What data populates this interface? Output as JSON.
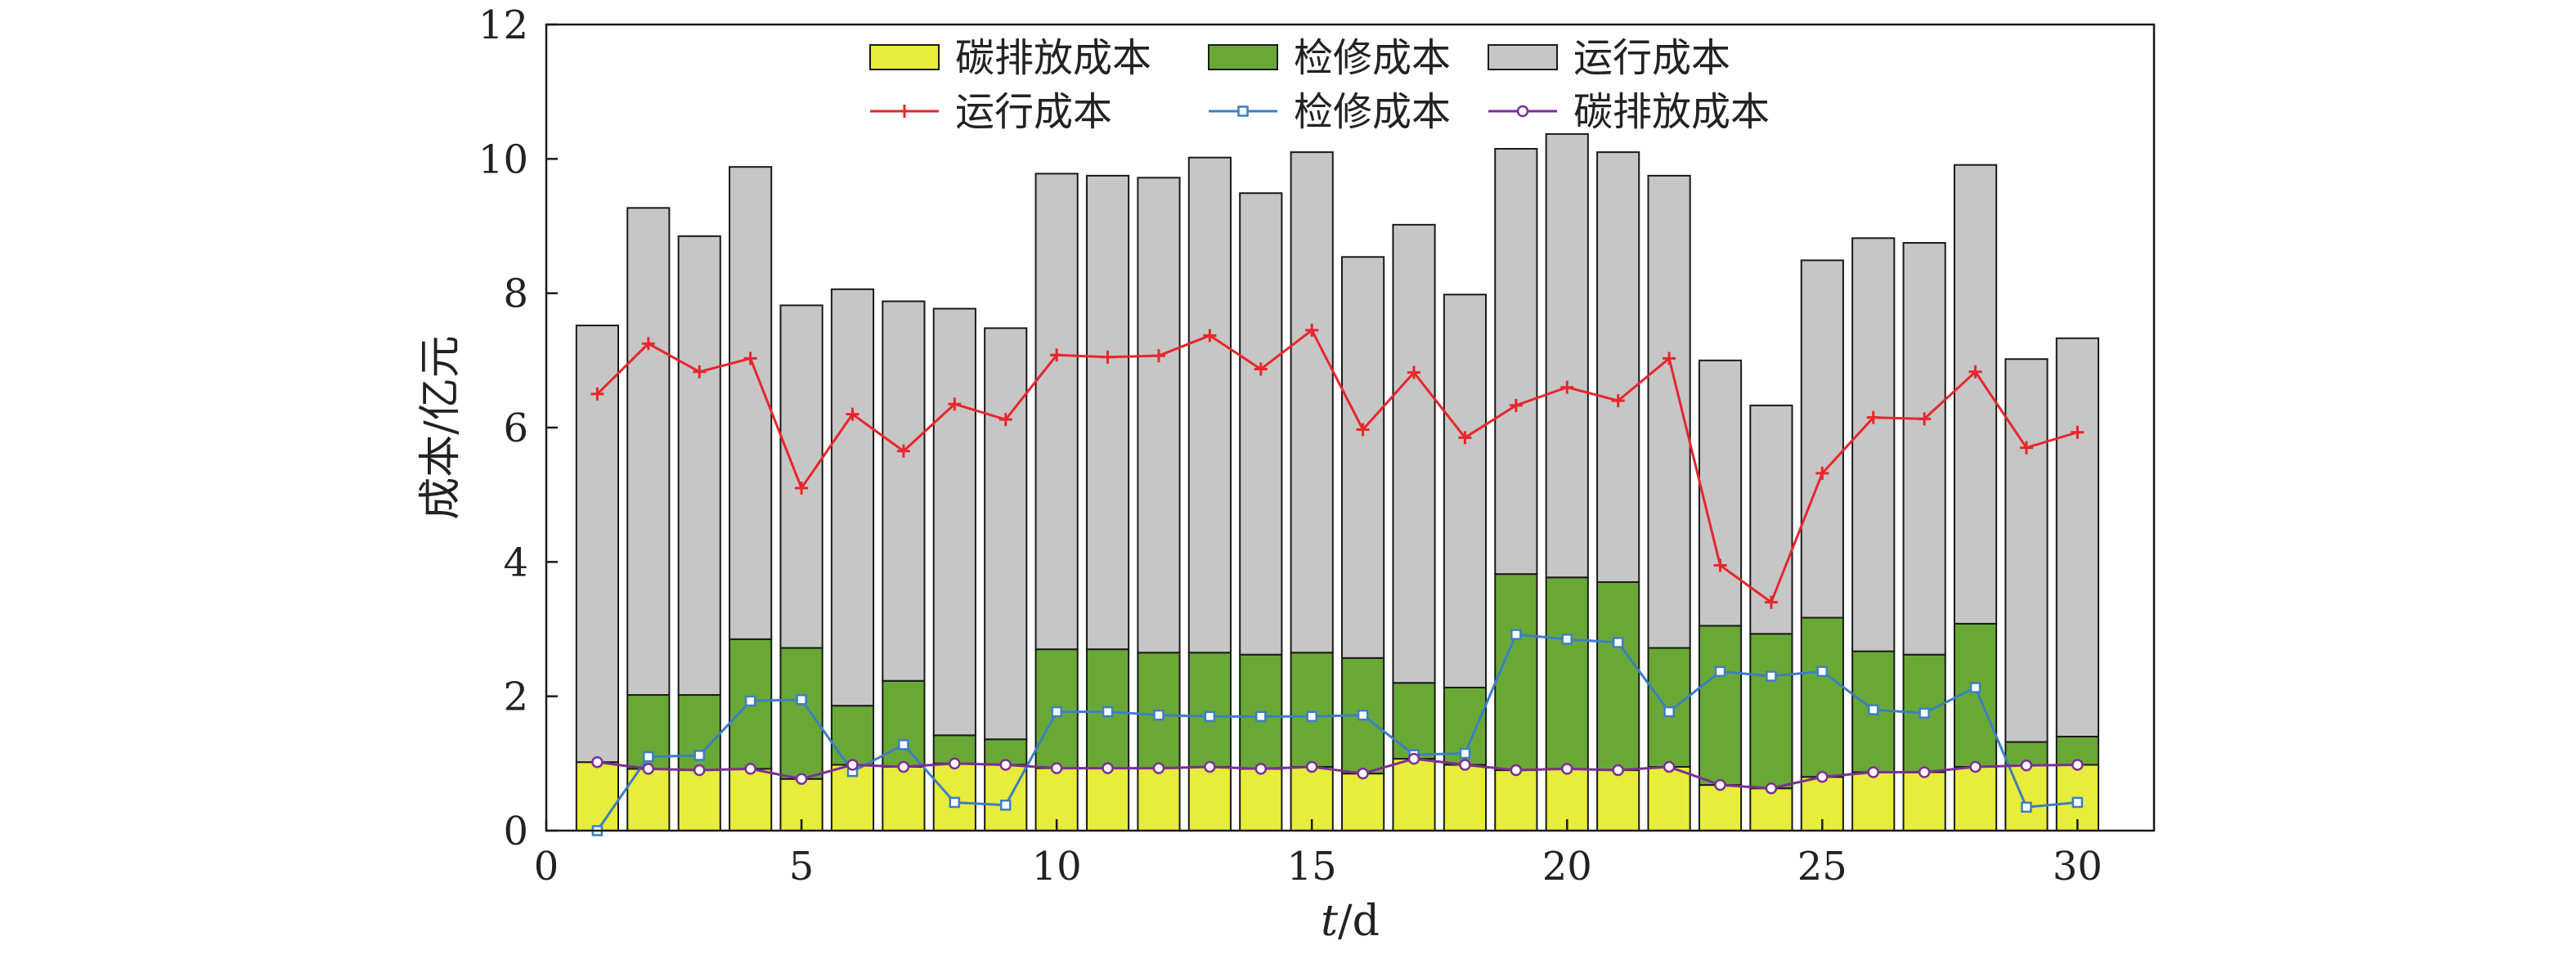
{
  "chart_data": {
    "type": "bar",
    "stacked": true,
    "title": "",
    "xlabel_italic": "t",
    "xlabel_unit": "/d",
    "ylabel": "成本/亿元",
    "xlim": [
      0,
      31.5
    ],
    "ylim": [
      0,
      12
    ],
    "x_ticks": [
      0,
      5,
      10,
      15,
      20,
      25,
      30
    ],
    "y_ticks": [
      0,
      2,
      4,
      6,
      8,
      10,
      12
    ],
    "grid": false,
    "legend_position": "top-center",
    "x": [
      1,
      2,
      3,
      4,
      5,
      6,
      7,
      8,
      9,
      10,
      11,
      12,
      13,
      14,
      15,
      16,
      17,
      18,
      19,
      20,
      21,
      22,
      23,
      24,
      25,
      26,
      27,
      28,
      29,
      30
    ],
    "bar_series": [
      {
        "name": "碳排放成本",
        "color": "#e8ec3a",
        "values": [
          1.02,
          0.92,
          0.9,
          0.92,
          0.77,
          0.98,
          0.95,
          1.0,
          0.98,
          0.93,
          0.93,
          0.93,
          0.95,
          0.92,
          0.95,
          0.85,
          1.07,
          0.98,
          0.9,
          0.92,
          0.9,
          0.95,
          0.68,
          0.63,
          0.8,
          0.87,
          0.87,
          0.95,
          0.97,
          0.98
        ]
      },
      {
        "name": "检修成本",
        "color": "#6aa835",
        "values": [
          0.0,
          1.1,
          1.12,
          1.93,
          1.95,
          0.88,
          1.28,
          0.42,
          0.38,
          1.77,
          1.77,
          1.72,
          1.7,
          1.7,
          1.7,
          1.72,
          1.13,
          1.15,
          2.92,
          2.85,
          2.8,
          1.77,
          2.37,
          2.3,
          2.37,
          1.8,
          1.75,
          2.13,
          0.35,
          0.42
        ]
      },
      {
        "name": "运行成本",
        "color": "#c6c6c6",
        "values": [
          6.5,
          7.25,
          6.83,
          7.03,
          5.1,
          6.2,
          5.65,
          6.35,
          6.12,
          7.08,
          7.05,
          7.07,
          7.37,
          6.87,
          7.45,
          5.97,
          6.82,
          5.85,
          6.33,
          6.6,
          6.4,
          7.03,
          3.95,
          3.4,
          5.32,
          6.15,
          6.13,
          6.83,
          5.7,
          5.93
        ]
      }
    ],
    "line_series": [
      {
        "name": "运行成本",
        "color": "#e8262b",
        "marker": "plus",
        "source_bar": 2
      },
      {
        "name": "检修成本",
        "color": "#3c7fc4",
        "marker": "square",
        "source_bar": 1
      },
      {
        "name": "碳排放成本",
        "color": "#7b2f94",
        "marker": "circle",
        "source_bar": 0
      }
    ]
  }
}
